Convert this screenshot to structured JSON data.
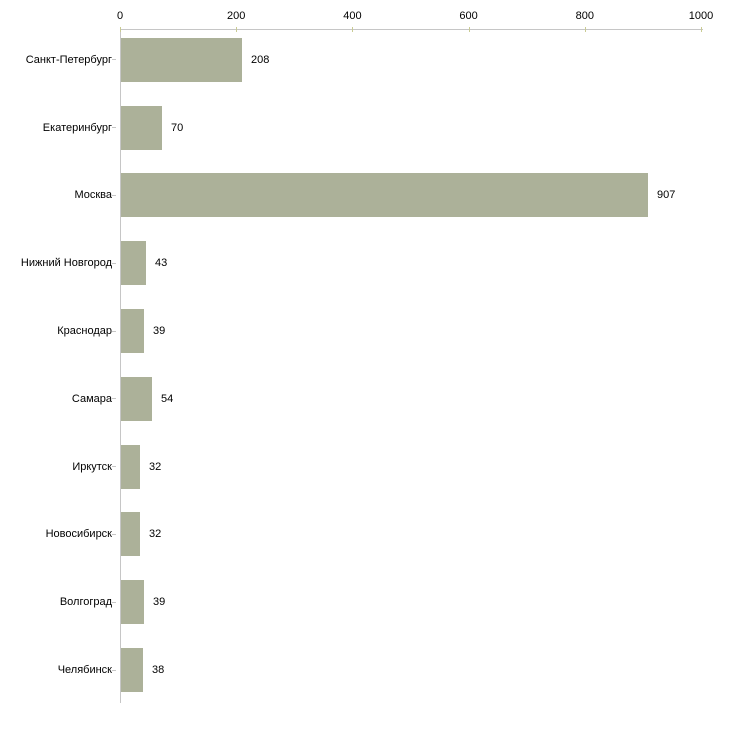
{
  "chart_data": {
    "type": "bar",
    "orientation": "horizontal",
    "title": "",
    "xlabel": "",
    "ylabel": "",
    "categories": [
      "Санкт-Петербург",
      "Екатеринбург",
      "Москва",
      "Нижний Новгород",
      "Краснодар",
      "Самара",
      "Иркутск",
      "Новосибирск",
      "Волгоград",
      "Челябинск"
    ],
    "values": [
      208,
      70,
      907,
      43,
      39,
      54,
      32,
      32,
      39,
      38
    ],
    "value_labels": [
      "208",
      "70",
      "907",
      "43",
      "39",
      "54",
      "32",
      "32",
      "39",
      "38"
    ],
    "xlim": [
      0,
      1000
    ],
    "x_ticks": [
      0,
      200,
      400,
      600,
      800,
      1000
    ],
    "x_tick_labels": [
      "0",
      "200",
      "400",
      "600",
      "800",
      "1000"
    ],
    "axis_position": "top",
    "grid": false,
    "legend": false,
    "colors": {
      "bar_fill": "#ACB199",
      "axis_line": "#C6C6C6",
      "tick_mark": "#C9CB93",
      "text": "#000000",
      "background": "#FFFFFF"
    }
  }
}
